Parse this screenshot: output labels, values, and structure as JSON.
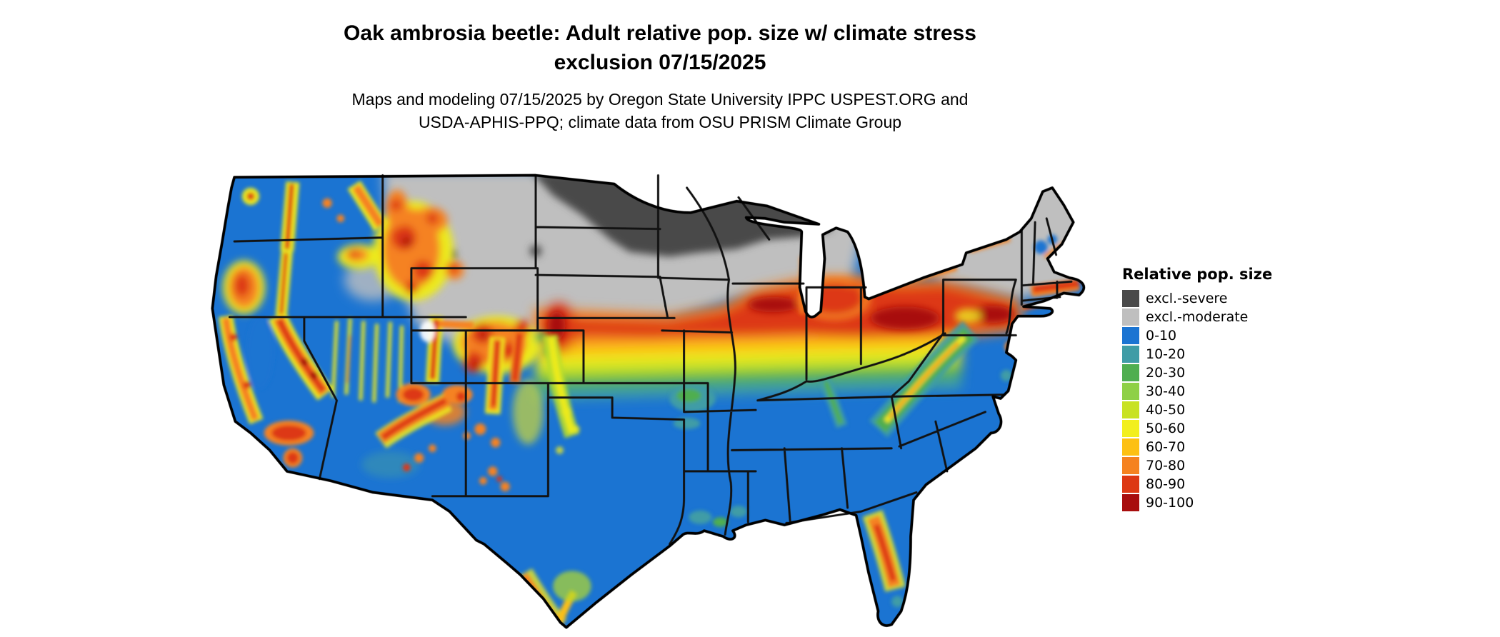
{
  "header": {
    "title_line1": "Oak ambrosia beetle: Adult relative pop. size w/ climate stress",
    "title_line2": "exclusion 07/15/2025",
    "subtitle_line1": "Maps and modeling 07/15/2025 by Oregon State University IPPC USPEST.ORG and",
    "subtitle_line2": "USDA-APHIS-PPQ; climate data from OSU PRISM Climate Group"
  },
  "legend": {
    "title": "Relative pop. size",
    "items": [
      {
        "label": "excl.-severe",
        "color": "#4a4a4a"
      },
      {
        "label": "excl.-moderate",
        "color": "#bfbfbf"
      },
      {
        "label": "0-10",
        "color": "#1b74d2"
      },
      {
        "label": "10-20",
        "color": "#3f9ca6"
      },
      {
        "label": "20-30",
        "color": "#4fae50"
      },
      {
        "label": "30-40",
        "color": "#8ed046"
      },
      {
        "label": "40-50",
        "color": "#c8e223"
      },
      {
        "label": "50-60",
        "color": "#f2ef1d"
      },
      {
        "label": "60-70",
        "color": "#fdc013"
      },
      {
        "label": "70-80",
        "color": "#f58220"
      },
      {
        "label": "80-90",
        "color": "#dd3813"
      },
      {
        "label": "90-100",
        "color": "#a80d0d"
      }
    ]
  },
  "map": {
    "region": "Continental United States",
    "kind": "modeled relative population size raster with state boundaries"
  }
}
